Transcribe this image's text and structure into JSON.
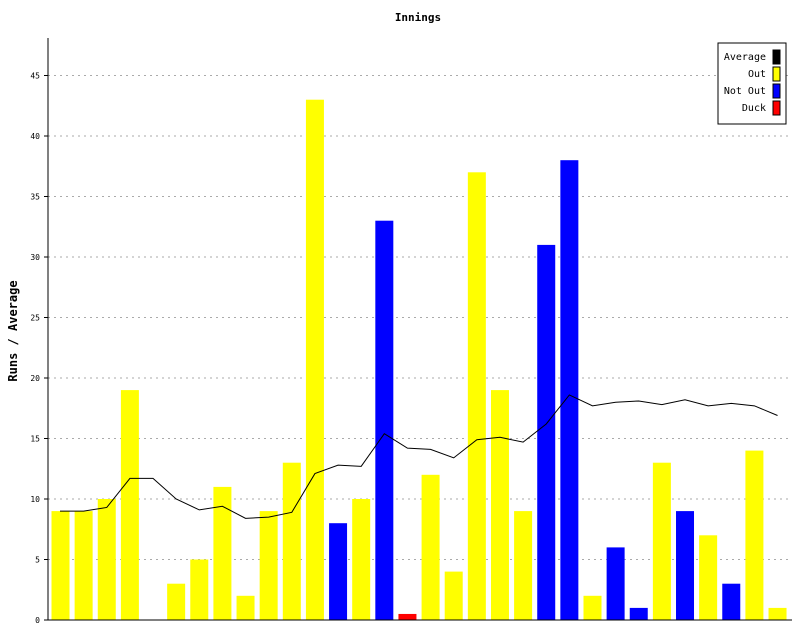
{
  "chart_data": {
    "type": "bar",
    "title": "Innings",
    "ylabel": "Runs / Average",
    "xlabel": "",
    "ylim": [
      0,
      48
    ],
    "yticks": [
      0,
      5,
      10,
      15,
      20,
      25,
      30,
      35,
      40,
      45
    ],
    "grid": true,
    "legend_position": "top-right",
    "legend": [
      {
        "label": "Average",
        "color": "#000000"
      },
      {
        "label": "Out",
        "color": "#ffff00"
      },
      {
        "label": "Not Out",
        "color": "#0000ff"
      },
      {
        "label": "Duck",
        "color": "#ff0000"
      }
    ],
    "innings": [
      {
        "runs": 9,
        "status": "out"
      },
      {
        "runs": 9,
        "status": "out"
      },
      {
        "runs": 10,
        "status": "out"
      },
      {
        "runs": 19,
        "status": "out"
      },
      {
        "runs": 0,
        "status": "none"
      },
      {
        "runs": 3,
        "status": "out"
      },
      {
        "runs": 5,
        "status": "out"
      },
      {
        "runs": 11,
        "status": "out"
      },
      {
        "runs": 2,
        "status": "out"
      },
      {
        "runs": 9,
        "status": "out"
      },
      {
        "runs": 13,
        "status": "out"
      },
      {
        "runs": 43,
        "status": "out"
      },
      {
        "runs": 8,
        "status": "not_out"
      },
      {
        "runs": 10,
        "status": "out"
      },
      {
        "runs": 33,
        "status": "not_out"
      },
      {
        "runs": 0.5,
        "status": "duck"
      },
      {
        "runs": 12,
        "status": "out"
      },
      {
        "runs": 4,
        "status": "out"
      },
      {
        "runs": 37,
        "status": "out"
      },
      {
        "runs": 19,
        "status": "out"
      },
      {
        "runs": 9,
        "status": "out"
      },
      {
        "runs": 31,
        "status": "not_out"
      },
      {
        "runs": 38,
        "status": "not_out"
      },
      {
        "runs": 2,
        "status": "out"
      },
      {
        "runs": 6,
        "status": "not_out"
      },
      {
        "runs": 1,
        "status": "not_out"
      },
      {
        "runs": 13,
        "status": "out"
      },
      {
        "runs": 9,
        "status": "not_out"
      },
      {
        "runs": 7,
        "status": "out"
      },
      {
        "runs": 3,
        "status": "not_out"
      },
      {
        "runs": 14,
        "status": "out"
      },
      {
        "runs": 1,
        "status": "out"
      }
    ],
    "average_series": {
      "name": "Average",
      "values": [
        9,
        9,
        9.3,
        11.7,
        11.7,
        10,
        9.1,
        9.4,
        8.4,
        8.5,
        8.9,
        12.1,
        12.8,
        12.7,
        15.4,
        14.2,
        14.1,
        13.4,
        14.9,
        15.1,
        14.7,
        16.2,
        18.6,
        17.7,
        18,
        18.1,
        17.8,
        18.2,
        17.7,
        17.9,
        17.7,
        16.9
      ]
    }
  }
}
